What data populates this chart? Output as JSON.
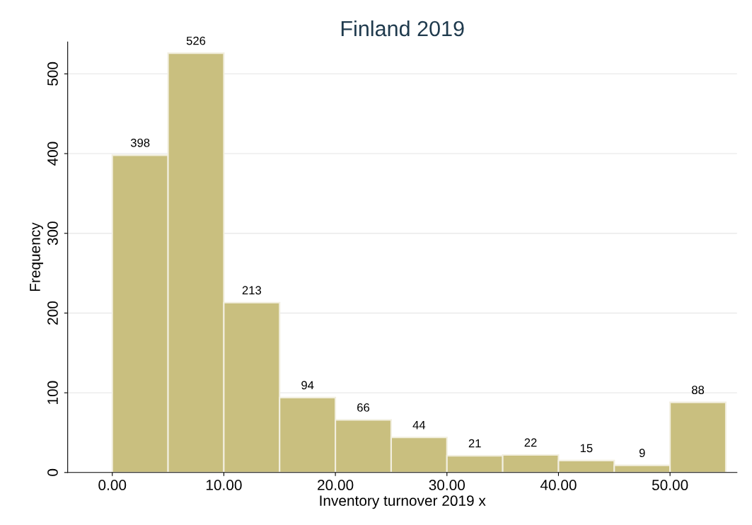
{
  "chart_data": {
    "type": "histogram",
    "title": "Finland 2019",
    "xlabel": "Inventory turnover 2019 x",
    "ylabel": "Frequency",
    "bins": [
      0,
      5,
      10,
      15,
      20,
      25,
      30,
      35,
      40,
      45,
      50,
      55
    ],
    "values": [
      398,
      526,
      213,
      94,
      66,
      44,
      21,
      22,
      15,
      9,
      88
    ],
    "color": "#c9bf7f",
    "xlim": [
      -4,
      56
    ],
    "ylim": [
      0,
      540
    ],
    "xticks": [
      {
        "value": 0,
        "label": "0.00"
      },
      {
        "value": 10,
        "label": "10.00"
      },
      {
        "value": 20,
        "label": "20.00"
      },
      {
        "value": 30,
        "label": "30.00"
      },
      {
        "value": 40,
        "label": "40.00"
      },
      {
        "value": 50,
        "label": "50.00"
      }
    ],
    "yticks": [
      0,
      100,
      200,
      300,
      400,
      500
    ],
    "grid": "y",
    "data_labels": true
  }
}
